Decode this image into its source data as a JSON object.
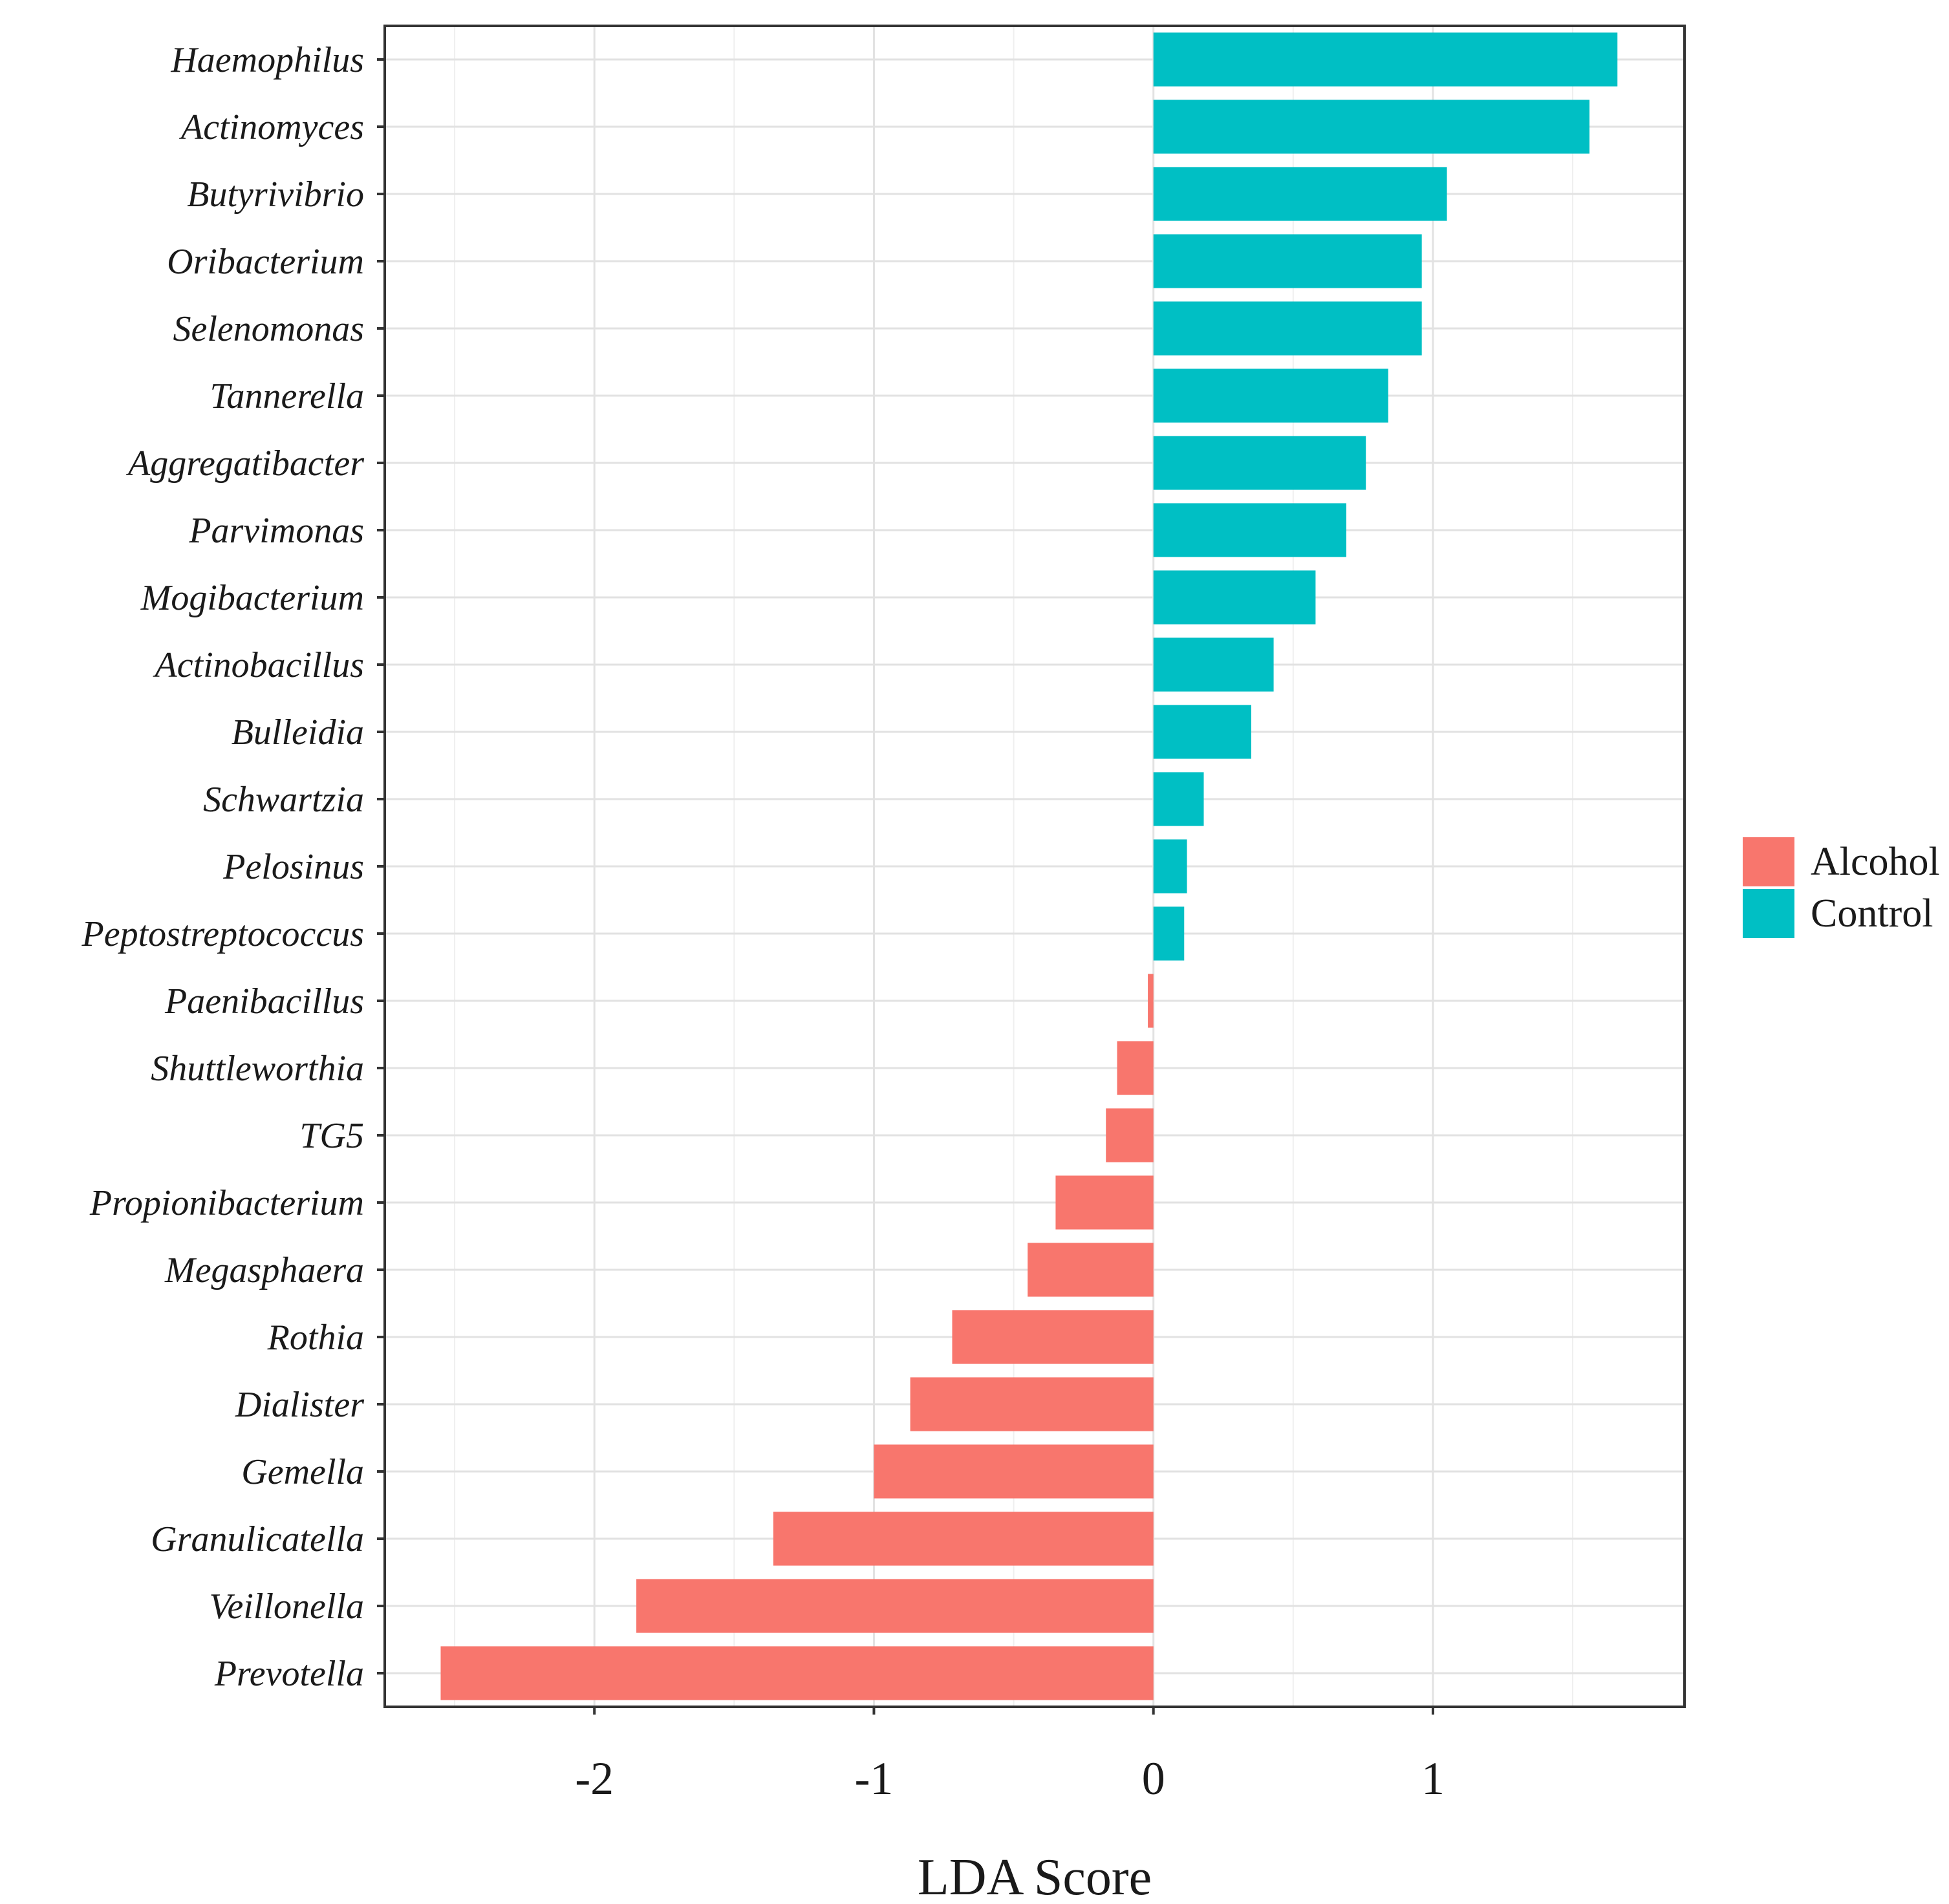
{
  "chart_data": {
    "type": "bar",
    "orientation": "horizontal",
    "xlabel": "LDA Score",
    "ylabel": "",
    "xlim": [
      -2.75,
      1.9
    ],
    "xticks": [
      -2,
      -1,
      0,
      1
    ],
    "grid": true,
    "legend_position": "right",
    "groups": [
      {
        "name": "Alcohol",
        "color": "#F8766D"
      },
      {
        "name": "Control",
        "color": "#00BFC4"
      }
    ],
    "categories": [
      "Haemophilus",
      "Actinomyces",
      "Butyrivibrio",
      "Oribacterium",
      "Selenomonas",
      "Tannerella",
      "Aggregatibacter",
      "Parvimonas",
      "Mogibacterium",
      "Actinobacillus",
      "Bulleidia",
      "Schwartzia",
      "Pelosinus",
      "Peptostreptococcus",
      "Paenibacillus",
      "Shuttleworthia",
      "TG5",
      "Propionibacterium",
      "Megasphaera",
      "Rothia",
      "Dialister",
      "Gemella",
      "Granulicatella",
      "Veillonella",
      "Prevotella"
    ],
    "values": [
      1.66,
      1.56,
      1.05,
      0.96,
      0.96,
      0.84,
      0.76,
      0.69,
      0.58,
      0.43,
      0.35,
      0.18,
      0.12,
      0.11,
      -0.02,
      -0.13,
      -0.17,
      -0.35,
      -0.45,
      -0.72,
      -0.87,
      -1.0,
      -1.36,
      -1.85,
      -2.55
    ],
    "group": [
      "Control",
      "Control",
      "Control",
      "Control",
      "Control",
      "Control",
      "Control",
      "Control",
      "Control",
      "Control",
      "Control",
      "Control",
      "Control",
      "Control",
      "Alcohol",
      "Alcohol",
      "Alcohol",
      "Alcohol",
      "Alcohol",
      "Alcohol",
      "Alcohol",
      "Alcohol",
      "Alcohol",
      "Alcohol",
      "Alcohol"
    ]
  }
}
